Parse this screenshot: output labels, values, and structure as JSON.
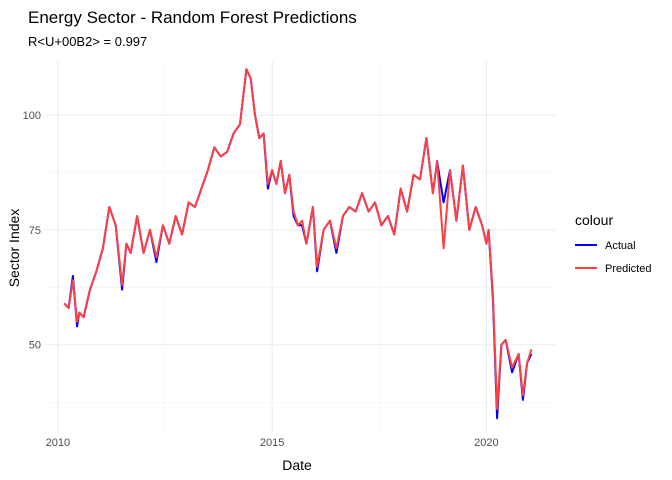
{
  "chart_data": {
    "type": "line",
    "title": "Energy Sector - Random Forest Predictions",
    "subtitle": "R<U+00B2> = 0.997",
    "xlabel": "Date",
    "ylabel": "Sector Index",
    "x_ticks": [
      2010,
      2015,
      2020
    ],
    "y_ticks": [
      50,
      75,
      100
    ],
    "xlim": [
      2009.7,
      2021.6
    ],
    "ylim": [
      31,
      112
    ],
    "grid": true,
    "legend": {
      "title": "colour",
      "position": "right"
    },
    "x": [
      2010.15,
      2010.25,
      2010.35,
      2010.45,
      2010.5,
      2010.6,
      2010.75,
      2010.9,
      2011.05,
      2011.2,
      2011.35,
      2011.5,
      2011.6,
      2011.7,
      2011.85,
      2012.0,
      2012.15,
      2012.3,
      2012.45,
      2012.6,
      2012.75,
      2012.9,
      2013.05,
      2013.2,
      2013.35,
      2013.5,
      2013.65,
      2013.8,
      2013.95,
      2014.1,
      2014.25,
      2014.4,
      2014.5,
      2014.6,
      2014.7,
      2014.8,
      2014.9,
      2015.0,
      2015.1,
      2015.2,
      2015.3,
      2015.4,
      2015.5,
      2015.6,
      2015.7,
      2015.8,
      2015.95,
      2016.05,
      2016.2,
      2016.35,
      2016.5,
      2016.65,
      2016.8,
      2016.95,
      2017.1,
      2017.25,
      2017.4,
      2017.55,
      2017.7,
      2017.85,
      2018.0,
      2018.15,
      2018.3,
      2018.45,
      2018.6,
      2018.75,
      2018.85,
      2019.0,
      2019.15,
      2019.3,
      2019.45,
      2019.6,
      2019.75,
      2019.9,
      2020.0,
      2020.05,
      2020.15,
      2020.25,
      2020.35,
      2020.45,
      2020.6,
      2020.75,
      2020.85,
      2020.95,
      2021.05
    ],
    "series": [
      {
        "name": "Actual",
        "color": "#0000ff",
        "values": [
          59,
          58,
          65,
          54,
          57,
          56,
          62,
          66,
          71,
          80,
          76,
          62,
          72,
          70,
          78,
          70,
          75,
          68,
          76,
          72,
          78,
          74,
          81,
          80,
          84,
          88,
          93,
          91,
          92,
          96,
          98,
          110,
          108,
          100,
          95,
          96,
          84,
          88,
          85,
          90,
          83,
          87,
          78,
          76,
          76,
          72,
          80,
          66,
          75,
          77,
          70,
          78,
          80,
          79,
          83,
          79,
          81,
          76,
          78,
          74,
          84,
          79,
          87,
          86,
          95,
          83,
          90,
          81,
          88,
          77,
          89,
          75,
          80,
          76,
          72,
          75,
          60,
          34,
          50,
          51,
          44,
          48,
          38,
          46,
          48
        ]
      },
      {
        "name": "Predicted",
        "color": "#ff4040",
        "values": [
          59,
          58,
          64,
          55,
          57,
          56,
          62,
          66,
          71,
          80,
          76,
          63,
          72,
          70,
          78,
          70,
          75,
          69,
          76,
          72,
          78,
          74,
          81,
          80,
          84,
          88,
          93,
          91,
          92,
          96,
          98,
          110,
          108,
          100,
          95,
          96,
          85,
          88,
          85,
          90,
          83,
          87,
          79,
          76,
          77,
          72,
          80,
          67,
          75,
          77,
          71,
          78,
          80,
          79,
          83,
          79,
          81,
          76,
          78,
          74,
          84,
          79,
          87,
          86,
          95,
          83,
          90,
          71,
          88,
          77,
          89,
          75,
          80,
          76,
          72,
          75,
          61,
          36,
          50,
          51,
          45,
          48,
          39,
          46,
          49
        ]
      }
    ]
  }
}
